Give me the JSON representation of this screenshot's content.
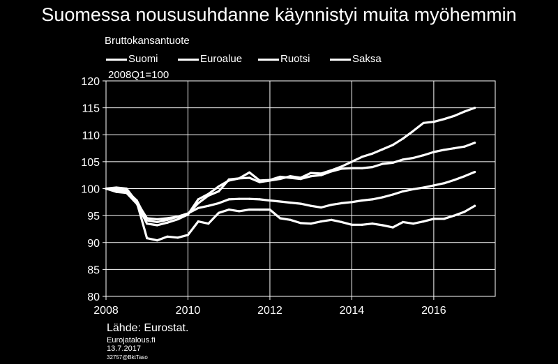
{
  "chart_data": {
    "type": "line",
    "title": "Suomessa noususuhdanne käynnistyi muita myöhemmin",
    "ylabel": "Bruttokansantuote",
    "unit_note": "2008Q1=100",
    "ylim": [
      80,
      120
    ],
    "yticks": [
      80,
      85,
      90,
      95,
      100,
      105,
      110,
      115,
      120
    ],
    "xlim": [
      2008.0,
      2017.5
    ],
    "xticks": [
      2008,
      2010,
      2012,
      2014,
      2016
    ],
    "grid": true,
    "legend_placement": "top",
    "line_color": "#ffffff",
    "x": [
      2008.0,
      2008.25,
      2008.5,
      2008.75,
      2009.0,
      2009.25,
      2009.5,
      2009.75,
      2010.0,
      2010.25,
      2010.5,
      2010.75,
      2011.0,
      2011.25,
      2011.5,
      2011.75,
      2012.0,
      2012.25,
      2012.5,
      2012.75,
      2013.0,
      2013.25,
      2013.5,
      2013.75,
      2014.0,
      2014.25,
      2014.5,
      2014.75,
      2015.0,
      2015.25,
      2015.5,
      2015.75,
      2016.0,
      2016.25,
      2016.5,
      2016.75,
      2017.0
    ],
    "series": [
      {
        "name": "Suomi",
        "values": [
          100,
          100.2,
          100.0,
          97.5,
          90.8,
          90.4,
          91.1,
          90.9,
          91.4,
          93.9,
          93.5,
          95.5,
          96.1,
          95.8,
          96.1,
          96.1,
          96.1,
          94.5,
          94.2,
          93.6,
          93.5,
          93.9,
          94.2,
          93.8,
          93.3,
          93.3,
          93.5,
          93.2,
          92.8,
          93.8,
          93.5,
          93.9,
          94.4,
          94.4,
          95.0,
          95.7,
          96.8
        ]
      },
      {
        "name": "Euroalue",
        "values": [
          100,
          99.6,
          99.3,
          97.5,
          94.5,
          94.3,
          94.5,
          94.8,
          95.4,
          96.4,
          96.8,
          97.3,
          98.0,
          98.1,
          98.1,
          98.0,
          97.8,
          97.6,
          97.4,
          97.2,
          96.8,
          96.5,
          97.0,
          97.3,
          97.5,
          97.8,
          98.0,
          98.4,
          98.9,
          99.5,
          99.9,
          100.2,
          100.6,
          101.0,
          101.6,
          102.3,
          103.1
        ]
      },
      {
        "name": "Ruotsi",
        "values": [
          100,
          99.4,
          99.2,
          97.2,
          93.5,
          93.2,
          93.7,
          94.3,
          95.2,
          98.0,
          99.0,
          100.4,
          101.5,
          101.9,
          103.0,
          101.5,
          101.6,
          102.2,
          102.0,
          101.8,
          102.3,
          102.5,
          103.2,
          103.7,
          103.8,
          103.8,
          104.0,
          104.6,
          104.8,
          105.4,
          105.7,
          106.2,
          106.8,
          107.2,
          107.5,
          107.8,
          108.5
        ]
      },
      {
        "name": "Saksa",
        "values": [
          100,
          99.8,
          99.6,
          97.8,
          94.1,
          93.8,
          94.2,
          94.8,
          95.3,
          97.3,
          98.7,
          99.5,
          101.7,
          101.9,
          102.0,
          101.2,
          101.5,
          101.8,
          102.3,
          102.0,
          102.9,
          102.8,
          103.4,
          104.1,
          105.0,
          105.9,
          106.5,
          107.3,
          108.1,
          109.3,
          110.7,
          112.2,
          112.4,
          112.9,
          113.5,
          114.3,
          115.0
        ]
      }
    ]
  },
  "footer": {
    "source": "Lähde: Eurostat.",
    "site": "Eurojatalous.fi",
    "date": "13.7.2017",
    "code": "32757@BktTaso"
  }
}
